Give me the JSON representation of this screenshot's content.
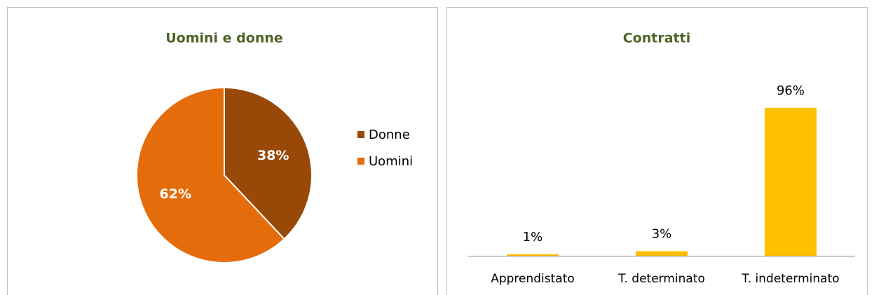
{
  "chart_data": [
    {
      "type": "pie",
      "title": "Uomini e donne",
      "categories": [
        "Donne",
        "Uomini"
      ],
      "values": [
        38,
        62
      ],
      "value_labels": [
        "38%",
        "62%"
      ],
      "colors": [
        "#984807",
        "#e46c0a"
      ],
      "legend": "right"
    },
    {
      "type": "bar",
      "title": "Contratti",
      "categories": [
        "Apprendistato",
        "T. determinato",
        "T. indeterminato"
      ],
      "values": [
        1,
        3,
        96
      ],
      "value_labels": [
        "1%",
        "3%",
        "96%"
      ],
      "color": "#ffc000",
      "ylim": [
        0,
        100
      ]
    }
  ]
}
